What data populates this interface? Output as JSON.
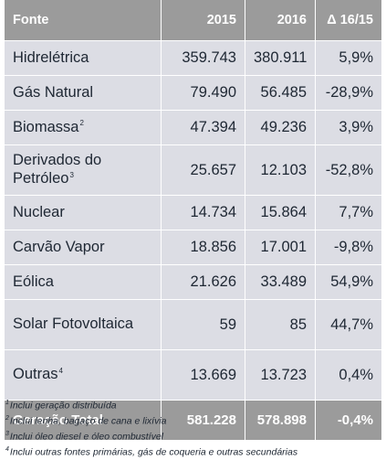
{
  "table": {
    "headers": {
      "source": "Fonte",
      "y2015": "2015",
      "y2016": "2016",
      "delta": "Δ 16/15"
    },
    "rows": [
      {
        "name": "Hidrelétrica",
        "sup": "",
        "v2015": "359.743",
        "v2016": "380.911",
        "delta": "5,9%"
      },
      {
        "name": "Gás Natural",
        "sup": "",
        "v2015": "79.490",
        "v2016": "56.485",
        "delta": "-28,9%"
      },
      {
        "name": "Biomassa",
        "sup": "2",
        "v2015": "47.394",
        "v2016": "49.236",
        "delta": "3,9%"
      },
      {
        "name": "Derivados do Petróleo",
        "sup": "3",
        "v2015": "25.657",
        "v2016": "12.103",
        "delta": "-52,8%"
      },
      {
        "name": "Nuclear",
        "sup": "",
        "v2015": "14.734",
        "v2016": "15.864",
        "delta": "7,7%"
      },
      {
        "name": "Carvão Vapor",
        "sup": "",
        "v2015": "18.856",
        "v2016": "17.001",
        "delta": "-9,8%"
      },
      {
        "name": "Eólica",
        "sup": "",
        "v2015": "21.626",
        "v2016": "33.489",
        "delta": "54,9%"
      },
      {
        "name": "Solar Fotovoltaica",
        "sup": "",
        "v2015": "59",
        "v2016": "85",
        "delta": "44,7%"
      },
      {
        "name": "Outras",
        "sup": "4",
        "v2015": "13.669",
        "v2016": "13.723",
        "delta": "0,4%"
      }
    ],
    "total": {
      "name": "Geração Total",
      "v2015": "581.228",
      "v2016": "578.898",
      "delta": "-0,4%"
    }
  },
  "footnotes": [
    {
      "num": "1",
      "text": "Inclui geração distribuída"
    },
    {
      "num": "2",
      "text": "Inclui lenha, bagaço de cana e lixívia"
    },
    {
      "num": "3",
      "text": "Inclui óleo diesel e óleo combustível"
    },
    {
      "num": "4",
      "text": "Inclui outras fontes primárias, gás de coqueria e outras secundárias"
    }
  ]
}
